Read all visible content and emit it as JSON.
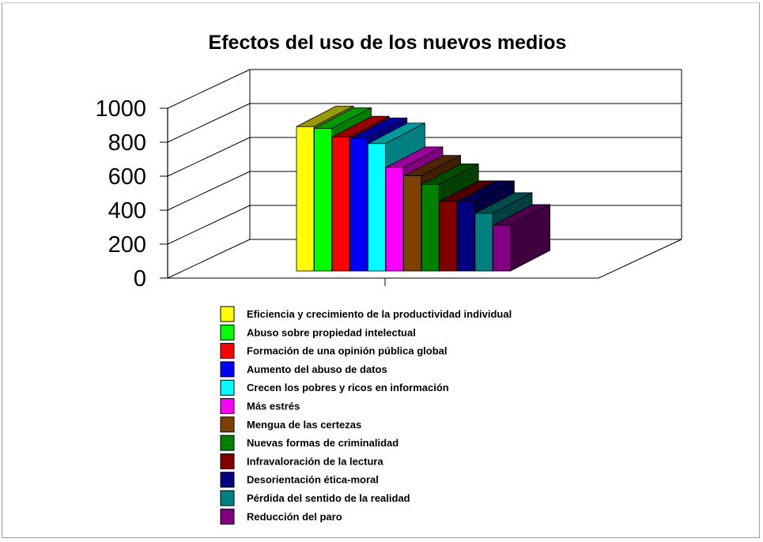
{
  "chart_data": {
    "type": "bar",
    "title": "Efectos del uso de los nuevos medios",
    "xlabel": "",
    "ylabel": "",
    "ylim": [
      0,
      1000
    ],
    "yticks": [
      0,
      200,
      400,
      600,
      800,
      1000
    ],
    "grid": true,
    "legend_position": "bottom",
    "series": [
      {
        "name": "Eficiencia y crecimiento de la productividad individual",
        "value": 850,
        "color": "#ffff00"
      },
      {
        "name": "Abuso sobre propiedad intelectual",
        "value": 840,
        "color": "#00ff00"
      },
      {
        "name": "Formación de una opinión pública global",
        "value": 790,
        "color": "#ff0000"
      },
      {
        "name": "Aumento del abuso de datos",
        "value": 780,
        "color": "#0000ff"
      },
      {
        "name": "Crecen los pobres y ricos en información",
        "value": 750,
        "color": "#00ffff"
      },
      {
        "name": "Más estrés",
        "value": 610,
        "color": "#ff00ff"
      },
      {
        "name": "Mengua de las certezas",
        "value": 560,
        "color": "#804000"
      },
      {
        "name": "Nuevas formas de criminalidad",
        "value": 510,
        "color": "#008000"
      },
      {
        "name": "Infravaloración  de la lectura",
        "value": 410,
        "color": "#800000"
      },
      {
        "name": "Desorientación ética-moral",
        "value": 410,
        "color": "#000080"
      },
      {
        "name": "Pérdida del sentido de la realidad",
        "value": 340,
        "color": "#008080"
      },
      {
        "name": "Reducción del paro",
        "value": 270,
        "color": "#800080"
      }
    ]
  }
}
